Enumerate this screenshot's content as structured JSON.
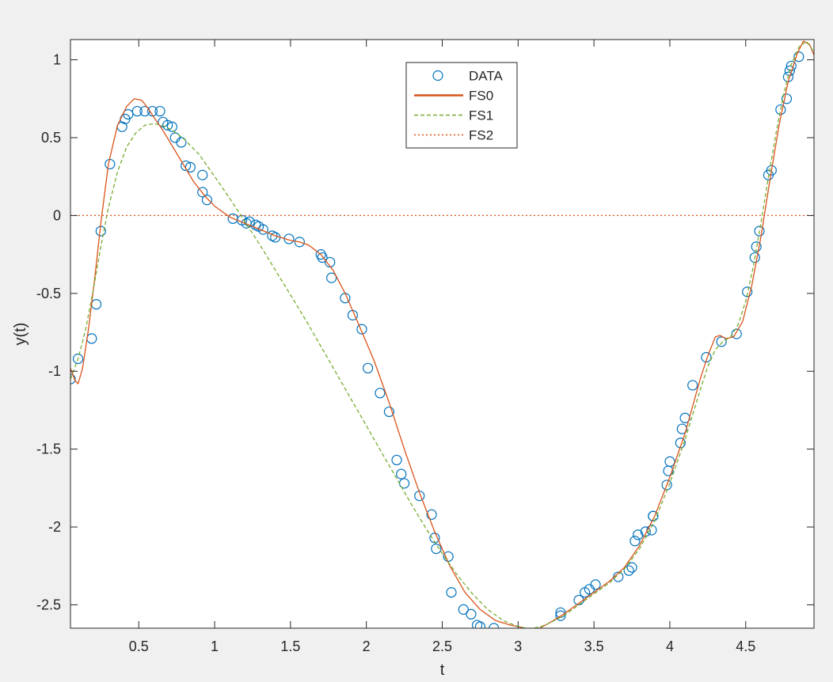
{
  "chart_data": {
    "type": "line",
    "title": "",
    "xlabel": "t",
    "ylabel": "y(t)",
    "xlim": [
      0.05,
      4.95
    ],
    "ylim": [
      -2.65,
      1.13
    ],
    "xticks": [
      0.5,
      1,
      1.5,
      2,
      2.5,
      3,
      3.5,
      4,
      4.5
    ],
    "xtick_labels": [
      "0.5",
      "1",
      "1.5",
      "2",
      "2.5",
      "3",
      "3.5",
      "4",
      "4.5"
    ],
    "yticks": [
      1,
      0.5,
      0,
      -0.5,
      -1,
      -1.5,
      -2,
      -2.5
    ],
    "ytick_labels": [
      "1",
      "0.5",
      "0",
      "-0.5",
      "-1",
      "-1.5",
      "-2",
      "-2.5"
    ],
    "grid": false,
    "legend_position": "top-center",
    "series": [
      {
        "name": "DATA",
        "style": "markers",
        "color": "#0072BD",
        "x": [
          0.05,
          0.1,
          0.19,
          0.22,
          0.25,
          0.31,
          0.39,
          0.41,
          0.43,
          0.49,
          0.54,
          0.59,
          0.64,
          0.66,
          0.69,
          0.72,
          0.74,
          0.78,
          0.81,
          0.84,
          0.92,
          0.92,
          0.95,
          1.12,
          1.18,
          1.21,
          1.23,
          1.27,
          1.29,
          1.32,
          1.38,
          1.4,
          1.49,
          1.56,
          1.7,
          1.71,
          1.76,
          1.77,
          1.86,
          1.91,
          1.97,
          2.01,
          2.09,
          2.15,
          2.2,
          2.23,
          2.25,
          2.35,
          2.43,
          2.45,
          2.46,
          2.54,
          2.56,
          2.64,
          2.69,
          2.73,
          2.75,
          2.84,
          3.28,
          3.28,
          3.4,
          3.44,
          3.47,
          3.51,
          3.66,
          3.73,
          3.75,
          3.77,
          3.79,
          3.84,
          3.88,
          3.89,
          3.89,
          3.98,
          3.99,
          4.0,
          4.07,
          4.08,
          4.1,
          4.15,
          4.24,
          4.34,
          4.44,
          4.51,
          4.56,
          4.57,
          4.59,
          4.65,
          4.67,
          4.73,
          4.77,
          4.78,
          4.79,
          4.8,
          4.85
        ],
        "y": [
          -1.05,
          -0.92,
          -0.79,
          -0.57,
          -0.1,
          0.33,
          0.57,
          0.62,
          0.65,
          0.67,
          0.67,
          0.67,
          0.67,
          0.6,
          0.58,
          0.57,
          0.5,
          0.47,
          0.32,
          0.31,
          0.26,
          0.15,
          0.1,
          -0.02,
          -0.03,
          -0.05,
          -0.04,
          -0.06,
          -0.07,
          -0.09,
          -0.13,
          -0.14,
          -0.15,
          -0.17,
          -0.25,
          -0.27,
          -0.3,
          -0.4,
          -0.53,
          -0.64,
          -0.73,
          -0.98,
          -1.14,
          -1.26,
          -1.57,
          -1.66,
          -1.72,
          -1.8,
          -1.92,
          -2.07,
          -2.14,
          -2.19,
          -2.42,
          -2.53,
          -2.56,
          -2.63,
          -2.64,
          -2.65,
          -2.55,
          -2.57,
          -2.47,
          -2.42,
          -2.4,
          -2.37,
          -2.32,
          -2.28,
          -2.26,
          -2.09,
          -2.05,
          -2.03,
          -2.02,
          -1.93,
          -1.93,
          -1.73,
          -1.64,
          -1.58,
          -1.46,
          -1.37,
          -1.3,
          -1.09,
          -0.91,
          -0.81,
          -0.76,
          -0.49,
          -0.27,
          -0.2,
          -0.1,
          0.26,
          0.29,
          0.68,
          0.75,
          0.89,
          0.93,
          0.96,
          1.02
        ]
      },
      {
        "name": "FS0",
        "style": "solid",
        "color": "#D95319",
        "x": [
          0.05,
          0.08,
          0.1,
          0.13,
          0.17,
          0.21,
          0.25,
          0.3,
          0.36,
          0.42,
          0.47,
          0.52,
          0.56,
          0.6,
          0.65,
          0.7,
          0.78,
          0.86,
          0.94,
          1.0,
          1.1,
          1.2,
          1.3,
          1.4,
          1.5,
          1.56,
          1.62,
          1.7,
          1.78,
          1.86,
          1.95,
          2.05,
          2.15,
          2.25,
          2.35,
          2.45,
          2.55,
          2.65,
          2.75,
          2.85,
          2.95,
          3.05,
          3.12,
          3.2,
          3.3,
          3.4,
          3.5,
          3.6,
          3.7,
          3.8,
          3.9,
          4.0,
          4.1,
          4.2,
          4.25,
          4.3,
          4.33,
          4.37,
          4.42,
          4.48,
          4.54,
          4.6,
          4.66,
          4.72,
          4.78,
          4.84,
          4.88,
          4.92,
          4.95
        ],
        "y": [
          -0.98,
          -1.06,
          -1.08,
          -0.98,
          -0.72,
          -0.4,
          -0.05,
          0.33,
          0.58,
          0.7,
          0.75,
          0.74,
          0.69,
          0.63,
          0.56,
          0.48,
          0.35,
          0.22,
          0.12,
          0.06,
          -0.01,
          -0.05,
          -0.09,
          -0.13,
          -0.16,
          -0.17,
          -0.19,
          -0.25,
          -0.35,
          -0.5,
          -0.7,
          -0.93,
          -1.2,
          -1.5,
          -1.78,
          -2.03,
          -2.25,
          -2.42,
          -2.53,
          -2.6,
          -2.63,
          -2.65,
          -2.66,
          -2.62,
          -2.56,
          -2.49,
          -2.42,
          -2.35,
          -2.26,
          -2.12,
          -1.93,
          -1.68,
          -1.4,
          -1.05,
          -0.9,
          -0.78,
          -0.77,
          -0.79,
          -0.78,
          -0.68,
          -0.45,
          -0.14,
          0.23,
          0.58,
          0.86,
          1.04,
          1.12,
          1.1,
          1.03
        ]
      },
      {
        "name": "FS1",
        "style": "dashed",
        "color": "#77AC30",
        "x": [
          0.05,
          0.1,
          0.15,
          0.2,
          0.25,
          0.3,
          0.36,
          0.42,
          0.48,
          0.54,
          0.6,
          0.65,
          0.72,
          0.8,
          0.9,
          1.0,
          1.1,
          1.2,
          1.3,
          1.4,
          1.5,
          1.6,
          1.7,
          1.8,
          1.9,
          2.0,
          2.1,
          2.2,
          2.3,
          2.4,
          2.5,
          2.6,
          2.7,
          2.8,
          2.9,
          3.0,
          3.05,
          3.1,
          3.15,
          3.2,
          3.3,
          3.4,
          3.5,
          3.6,
          3.7,
          3.8,
          3.9,
          4.0,
          4.1,
          4.2,
          4.25,
          4.3,
          4.35,
          4.4,
          4.45,
          4.5,
          4.55,
          4.6,
          4.65,
          4.7,
          4.75,
          4.8,
          4.85,
          4.9,
          4.95
        ],
        "y": [
          -1.05,
          -0.92,
          -0.73,
          -0.48,
          -0.2,
          0.05,
          0.28,
          0.44,
          0.53,
          0.58,
          0.59,
          0.58,
          0.55,
          0.49,
          0.39,
          0.25,
          0.11,
          -0.04,
          -0.19,
          -0.35,
          -0.51,
          -0.67,
          -0.84,
          -1.01,
          -1.18,
          -1.35,
          -1.52,
          -1.69,
          -1.86,
          -2.02,
          -2.17,
          -2.31,
          -2.43,
          -2.53,
          -2.6,
          -2.64,
          -2.65,
          -2.65,
          -2.64,
          -2.62,
          -2.57,
          -2.5,
          -2.43,
          -2.36,
          -2.27,
          -2.14,
          -1.96,
          -1.72,
          -1.44,
          -1.12,
          -0.97,
          -0.86,
          -0.81,
          -0.78,
          -0.7,
          -0.55,
          -0.33,
          -0.05,
          0.25,
          0.53,
          0.78,
          0.97,
          1.08,
          1.12,
          1.05
        ]
      },
      {
        "name": "FS2",
        "style": "dotted",
        "color": "#D95319",
        "x": [
          0.05,
          4.95
        ],
        "y": [
          0,
          0
        ]
      }
    ]
  }
}
